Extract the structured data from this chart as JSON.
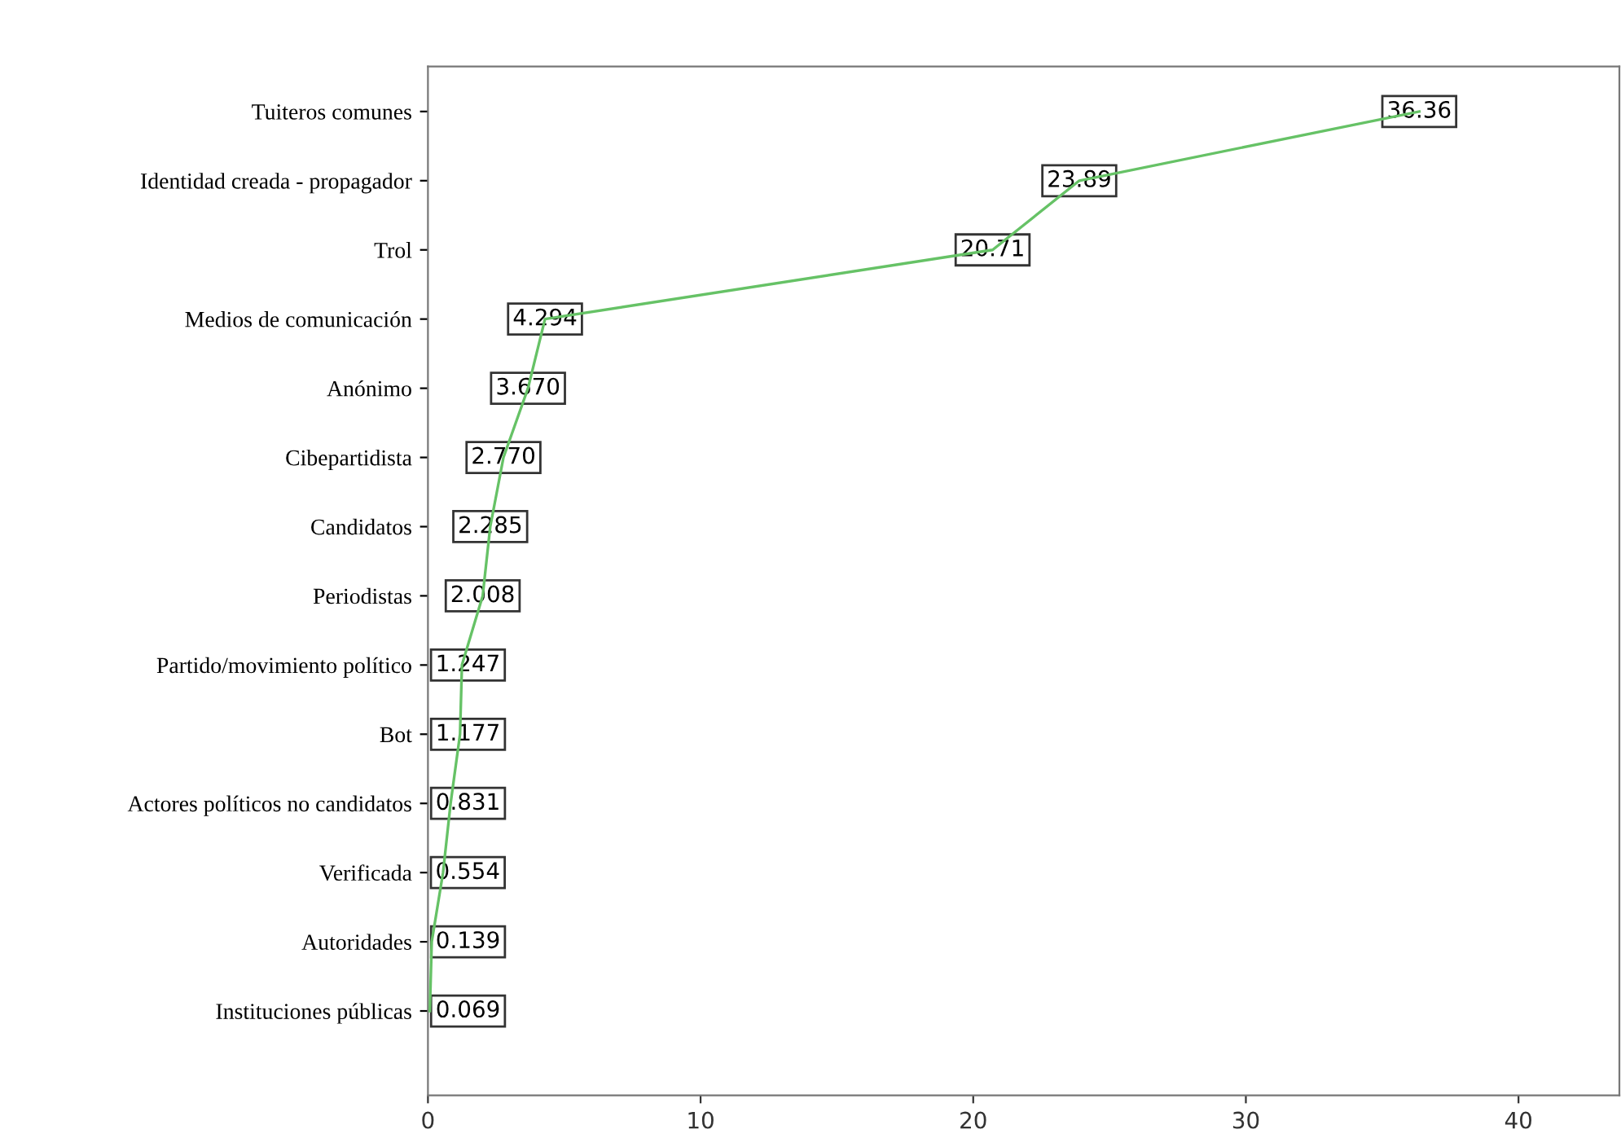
{
  "chart_data": {
    "type": "line",
    "orientation": "horizontal",
    "categories": [
      "Tuiteros comunes",
      "Identidad creada - propagador",
      "Trol",
      "Medios de comunicación",
      "Anónimo",
      "Cibepartidista",
      "Candidatos",
      "Periodistas",
      "Partido/movimiento político",
      "Bot",
      "Actores políticos no candidatos",
      "Verificada",
      "Autoridades",
      "Instituciones públicas"
    ],
    "series": [
      {
        "color": "#66c266",
        "values": [
          36.36,
          23.89,
          20.71,
          4.294,
          3.67,
          2.77,
          2.285,
          2.008,
          1.247,
          1.177,
          0.831,
          0.554,
          0.139,
          0.069
        ],
        "value_labels": [
          "36.36",
          "23.89",
          "20.71",
          "4.294",
          "3.670",
          "2.770",
          "2.285",
          "2.008",
          "1.247",
          "1.177",
          "0.831",
          "0.554",
          "0.139",
          "0.069"
        ]
      }
    ],
    "xlim": [
      0,
      43.7
    ],
    "xticks": [
      0,
      10,
      20,
      30,
      40
    ],
    "grid": false,
    "legend": false,
    "line_style": "solid"
  }
}
